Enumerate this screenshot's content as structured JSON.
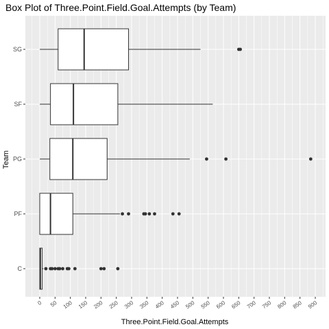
{
  "chart_data": {
    "type": "boxplot",
    "title": "Box Plot of Three.Point.Field.Goal.Attempts (by Team)",
    "xlabel": "Three.Point.Field.Goal.Attempts",
    "ylabel": "Team",
    "xlim": [
      -30,
      920
    ],
    "x_ticks": [
      0,
      50,
      100,
      150,
      200,
      250,
      300,
      350,
      400,
      450,
      500,
      550,
      600,
      650,
      700,
      750,
      800,
      850,
      900
    ],
    "grid": true,
    "legend": "none",
    "colors": {
      "panel": "#ebebeb",
      "grid": "#ffffff",
      "box_fill": "#ffffff",
      "box_stroke": "#333333",
      "outlier": "#333333"
    },
    "categories": [
      "SG",
      "SF",
      "PG",
      "PF",
      "C"
    ],
    "boxes": [
      {
        "name": "SG",
        "whisker_low": 0,
        "q1": 60,
        "median": 145,
        "q3": 290,
        "whisker_high": 525,
        "outliers": [
          650,
          655
        ]
      },
      {
        "name": "SF",
        "whisker_low": 0,
        "q1": 35,
        "median": 110,
        "q3": 255,
        "whisker_high": 565,
        "outliers": []
      },
      {
        "name": "PG",
        "whisker_low": 0,
        "q1": 33,
        "median": 108,
        "q3": 220,
        "whisker_high": 490,
        "outliers": [
          545,
          608,
          885
        ]
      },
      {
        "name": "PF",
        "whisker_low": 0,
        "q1": 0,
        "median": 35,
        "q3": 108,
        "whisker_high": 262,
        "outliers": [
          270,
          290,
          340,
          345,
          358,
          375,
          435,
          455
        ]
      },
      {
        "name": "C",
        "whisker_low": 0,
        "q1": 0,
        "median": 2,
        "q3": 8,
        "whisker_high": 12,
        "outliers": [
          20,
          35,
          40,
          50,
          60,
          65,
          75,
          90,
          95,
          115,
          200,
          210,
          255
        ]
      }
    ]
  }
}
